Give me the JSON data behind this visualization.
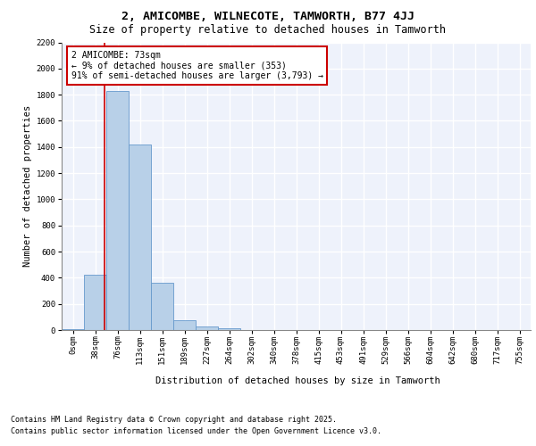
{
  "title1": "2, AMICOMBE, WILNECOTE, TAMWORTH, B77 4JJ",
  "title2": "Size of property relative to detached houses in Tamworth",
  "xlabel": "Distribution of detached houses by size in Tamworth",
  "ylabel": "Number of detached properties",
  "bar_labels": [
    "0sqm",
    "38sqm",
    "76sqm",
    "113sqm",
    "151sqm",
    "189sqm",
    "227sqm",
    "264sqm",
    "302sqm",
    "340sqm",
    "378sqm",
    "415sqm",
    "453sqm",
    "491sqm",
    "529sqm",
    "566sqm",
    "604sqm",
    "642sqm",
    "680sqm",
    "717sqm",
    "755sqm"
  ],
  "bar_values": [
    10,
    425,
    1830,
    1420,
    360,
    75,
    25,
    12,
    0,
    0,
    0,
    0,
    0,
    0,
    0,
    0,
    0,
    0,
    0,
    0,
    0
  ],
  "bar_color": "#b8d0e8",
  "bar_edge_color": "#6699cc",
  "property_line_color": "#cc0000",
  "annotation_text": "2 AMICOMBE: 73sqm\n← 9% of detached houses are smaller (353)\n91% of semi-detached houses are larger (3,793) →",
  "annotation_box_color": "#cc0000",
  "ylim": [
    0,
    2200
  ],
  "yticks": [
    0,
    200,
    400,
    600,
    800,
    1000,
    1200,
    1400,
    1600,
    1800,
    2000,
    2200
  ],
  "background_color": "#eef2fb",
  "grid_color": "#ffffff",
  "footer_line1": "Contains HM Land Registry data © Crown copyright and database right 2025.",
  "footer_line2": "Contains public sector information licensed under the Open Government Licence v3.0.",
  "title1_fontsize": 9.5,
  "title2_fontsize": 8.5,
  "axis_label_fontsize": 7.5,
  "tick_fontsize": 6.5,
  "annotation_fontsize": 7.0,
  "footer_fontsize": 6.0
}
